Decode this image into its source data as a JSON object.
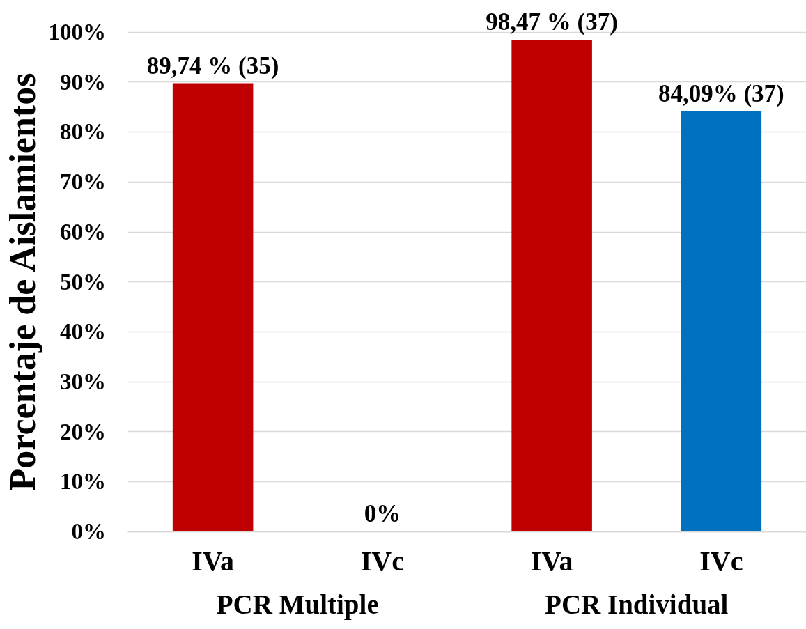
{
  "chart_data": {
    "type": "bar",
    "ylabel": "Porcentaje de Aislamientos",
    "categories": [
      "IVa",
      "IVc",
      "IVa",
      "IVc"
    ],
    "values": [
      89.74,
      0,
      98.47,
      84.09
    ],
    "colors": [
      "#c00000",
      "#0070c0",
      "#c00000",
      "#0070c0"
    ],
    "value_labels": [
      "89,74 % (35)",
      "0%",
      "98,47 % (37)",
      "84,09% (37)"
    ],
    "ylim": [
      0,
      100
    ],
    "yticks": [
      {
        "value": 0,
        "label": "0%"
      },
      {
        "value": 10,
        "label": "10%"
      },
      {
        "value": 20,
        "label": "20%"
      },
      {
        "value": 30,
        "label": "30%"
      },
      {
        "value": 40,
        "label": "40%"
      },
      {
        "value": 50,
        "label": "50%"
      },
      {
        "value": 60,
        "label": "60%"
      },
      {
        "value": 70,
        "label": "70%"
      },
      {
        "value": 80,
        "label": "80%"
      },
      {
        "value": 90,
        "label": "90%"
      },
      {
        "value": 100,
        "label": "100%"
      }
    ],
    "annotations": [
      "PCR Multiple",
      "PCR Individual"
    ],
    "grid": "y"
  }
}
